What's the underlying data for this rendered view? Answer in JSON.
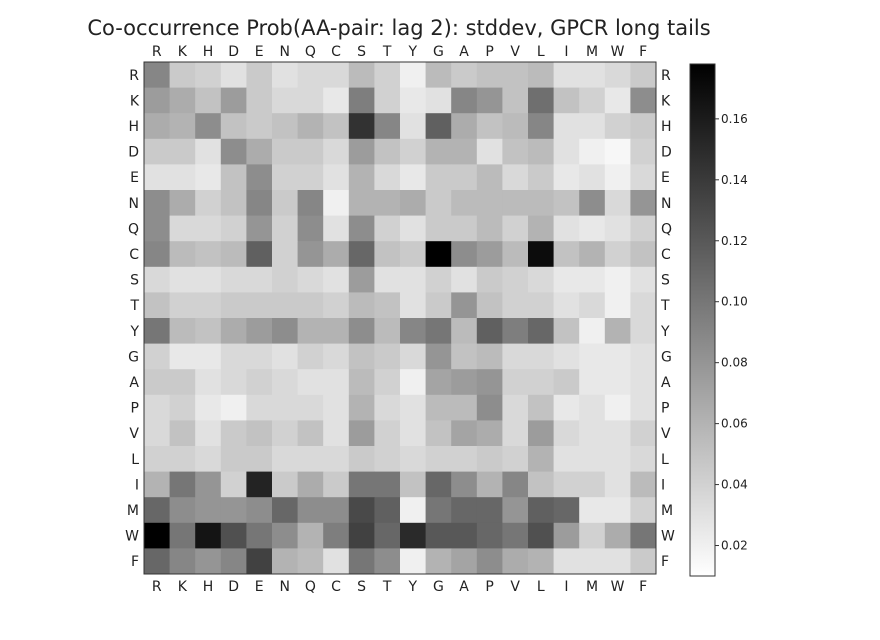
{
  "chart_data": {
    "type": "heatmap",
    "title": "Co-occurrence Prob(AA-pair: lag 2): stddev, GPCR long tails",
    "xlabel": "",
    "ylabel": "",
    "x_categories": [
      "R",
      "K",
      "H",
      "D",
      "E",
      "N",
      "Q",
      "C",
      "S",
      "T",
      "Y",
      "G",
      "A",
      "P",
      "V",
      "L",
      "I",
      "M",
      "W",
      "F"
    ],
    "y_categories": [
      "R",
      "K",
      "H",
      "D",
      "E",
      "N",
      "Q",
      "C",
      "S",
      "T",
      "Y",
      "G",
      "A",
      "P",
      "V",
      "L",
      "I",
      "M",
      "W",
      "F"
    ],
    "x_axis_positions": [
      "top",
      "bottom"
    ],
    "y_axis_positions": [
      "left",
      "right"
    ],
    "colormap": "gray_r",
    "color_low": "#ffffff",
    "color_high": "#000000",
    "vmin": 0.01,
    "vmax": 0.178,
    "colorbar_ticks": [
      0.02,
      0.04,
      0.06,
      0.08,
      0.1,
      0.12,
      0.14,
      0.16
    ],
    "colorbar_tick_labels": [
      "0.02",
      "0.04",
      "0.06",
      "0.08",
      "0.10",
      "0.12",
      "0.14",
      "0.16"
    ],
    "grid": false,
    "values": [
      [
        0.09,
        0.045,
        0.04,
        0.03,
        0.045,
        0.03,
        0.035,
        0.035,
        0.055,
        0.04,
        0.02,
        0.055,
        0.045,
        0.05,
        0.05,
        0.055,
        0.03,
        0.03,
        0.035,
        0.045
      ],
      [
        0.075,
        0.065,
        0.05,
        0.075,
        0.045,
        0.035,
        0.035,
        0.025,
        0.095,
        0.04,
        0.025,
        0.03,
        0.09,
        0.08,
        0.05,
        0.105,
        0.05,
        0.04,
        0.025,
        0.085
      ],
      [
        0.065,
        0.06,
        0.085,
        0.05,
        0.045,
        0.05,
        0.06,
        0.05,
        0.145,
        0.09,
        0.03,
        0.115,
        0.065,
        0.05,
        0.055,
        0.09,
        0.03,
        0.03,
        0.04,
        0.045
      ],
      [
        0.045,
        0.045,
        0.03,
        0.085,
        0.065,
        0.045,
        0.045,
        0.035,
        0.075,
        0.05,
        0.04,
        0.06,
        0.06,
        0.03,
        0.05,
        0.055,
        0.03,
        0.02,
        0.015,
        0.04
      ],
      [
        0.03,
        0.03,
        0.025,
        0.05,
        0.085,
        0.04,
        0.04,
        0.03,
        0.06,
        0.035,
        0.025,
        0.045,
        0.045,
        0.055,
        0.035,
        0.045,
        0.025,
        0.03,
        0.02,
        0.035
      ],
      [
        0.085,
        0.065,
        0.04,
        0.05,
        0.09,
        0.045,
        0.09,
        0.02,
        0.06,
        0.06,
        0.065,
        0.045,
        0.055,
        0.055,
        0.055,
        0.055,
        0.05,
        0.085,
        0.035,
        0.08
      ],
      [
        0.085,
        0.035,
        0.035,
        0.04,
        0.08,
        0.04,
        0.085,
        0.03,
        0.085,
        0.04,
        0.03,
        0.045,
        0.045,
        0.055,
        0.04,
        0.06,
        0.03,
        0.025,
        0.03,
        0.04
      ],
      [
        0.09,
        0.055,
        0.05,
        0.055,
        0.115,
        0.04,
        0.08,
        0.065,
        0.11,
        0.05,
        0.045,
        0.178,
        0.085,
        0.075,
        0.055,
        0.17,
        0.05,
        0.06,
        0.04,
        0.05
      ],
      [
        0.035,
        0.03,
        0.03,
        0.035,
        0.035,
        0.04,
        0.035,
        0.03,
        0.075,
        0.03,
        0.03,
        0.04,
        0.03,
        0.045,
        0.04,
        0.035,
        0.025,
        0.025,
        0.02,
        0.03
      ],
      [
        0.05,
        0.04,
        0.04,
        0.045,
        0.045,
        0.045,
        0.045,
        0.04,
        0.055,
        0.05,
        0.03,
        0.045,
        0.08,
        0.05,
        0.04,
        0.04,
        0.03,
        0.035,
        0.02,
        0.035
      ],
      [
        0.1,
        0.055,
        0.05,
        0.065,
        0.075,
        0.085,
        0.06,
        0.06,
        0.085,
        0.055,
        0.09,
        0.1,
        0.055,
        0.115,
        0.095,
        0.11,
        0.05,
        0.02,
        0.06,
        0.035
      ],
      [
        0.04,
        0.025,
        0.025,
        0.035,
        0.035,
        0.03,
        0.04,
        0.035,
        0.05,
        0.045,
        0.035,
        0.08,
        0.05,
        0.055,
        0.035,
        0.035,
        0.03,
        0.025,
        0.025,
        0.03
      ],
      [
        0.045,
        0.045,
        0.03,
        0.035,
        0.04,
        0.035,
        0.03,
        0.03,
        0.055,
        0.04,
        0.02,
        0.07,
        0.075,
        0.08,
        0.04,
        0.04,
        0.045,
        0.025,
        0.025,
        0.03
      ],
      [
        0.035,
        0.04,
        0.025,
        0.02,
        0.035,
        0.035,
        0.035,
        0.03,
        0.06,
        0.035,
        0.03,
        0.055,
        0.055,
        0.085,
        0.035,
        0.05,
        0.025,
        0.03,
        0.02,
        0.03
      ],
      [
        0.035,
        0.05,
        0.03,
        0.045,
        0.05,
        0.04,
        0.05,
        0.03,
        0.075,
        0.04,
        0.03,
        0.05,
        0.07,
        0.065,
        0.035,
        0.075,
        0.035,
        0.03,
        0.03,
        0.04
      ],
      [
        0.04,
        0.04,
        0.035,
        0.045,
        0.045,
        0.035,
        0.035,
        0.035,
        0.045,
        0.04,
        0.035,
        0.04,
        0.04,
        0.045,
        0.04,
        0.06,
        0.03,
        0.03,
        0.03,
        0.035
      ],
      [
        0.06,
        0.1,
        0.08,
        0.04,
        0.155,
        0.045,
        0.065,
        0.045,
        0.1,
        0.1,
        0.05,
        0.11,
        0.085,
        0.06,
        0.09,
        0.05,
        0.04,
        0.04,
        0.03,
        0.055
      ],
      [
        0.11,
        0.085,
        0.08,
        0.08,
        0.085,
        0.11,
        0.085,
        0.085,
        0.13,
        0.115,
        0.02,
        0.1,
        0.11,
        0.11,
        0.08,
        0.115,
        0.11,
        0.025,
        0.025,
        0.04
      ],
      [
        0.178,
        0.1,
        0.165,
        0.125,
        0.1,
        0.085,
        0.06,
        0.095,
        0.135,
        0.11,
        0.15,
        0.12,
        0.12,
        0.11,
        0.1,
        0.125,
        0.075,
        0.04,
        0.065,
        0.1
      ],
      [
        0.11,
        0.09,
        0.08,
        0.09,
        0.135,
        0.06,
        0.055,
        0.03,
        0.1,
        0.085,
        0.02,
        0.06,
        0.07,
        0.085,
        0.065,
        0.06,
        0.03,
        0.03,
        0.03,
        0.045
      ]
    ]
  }
}
